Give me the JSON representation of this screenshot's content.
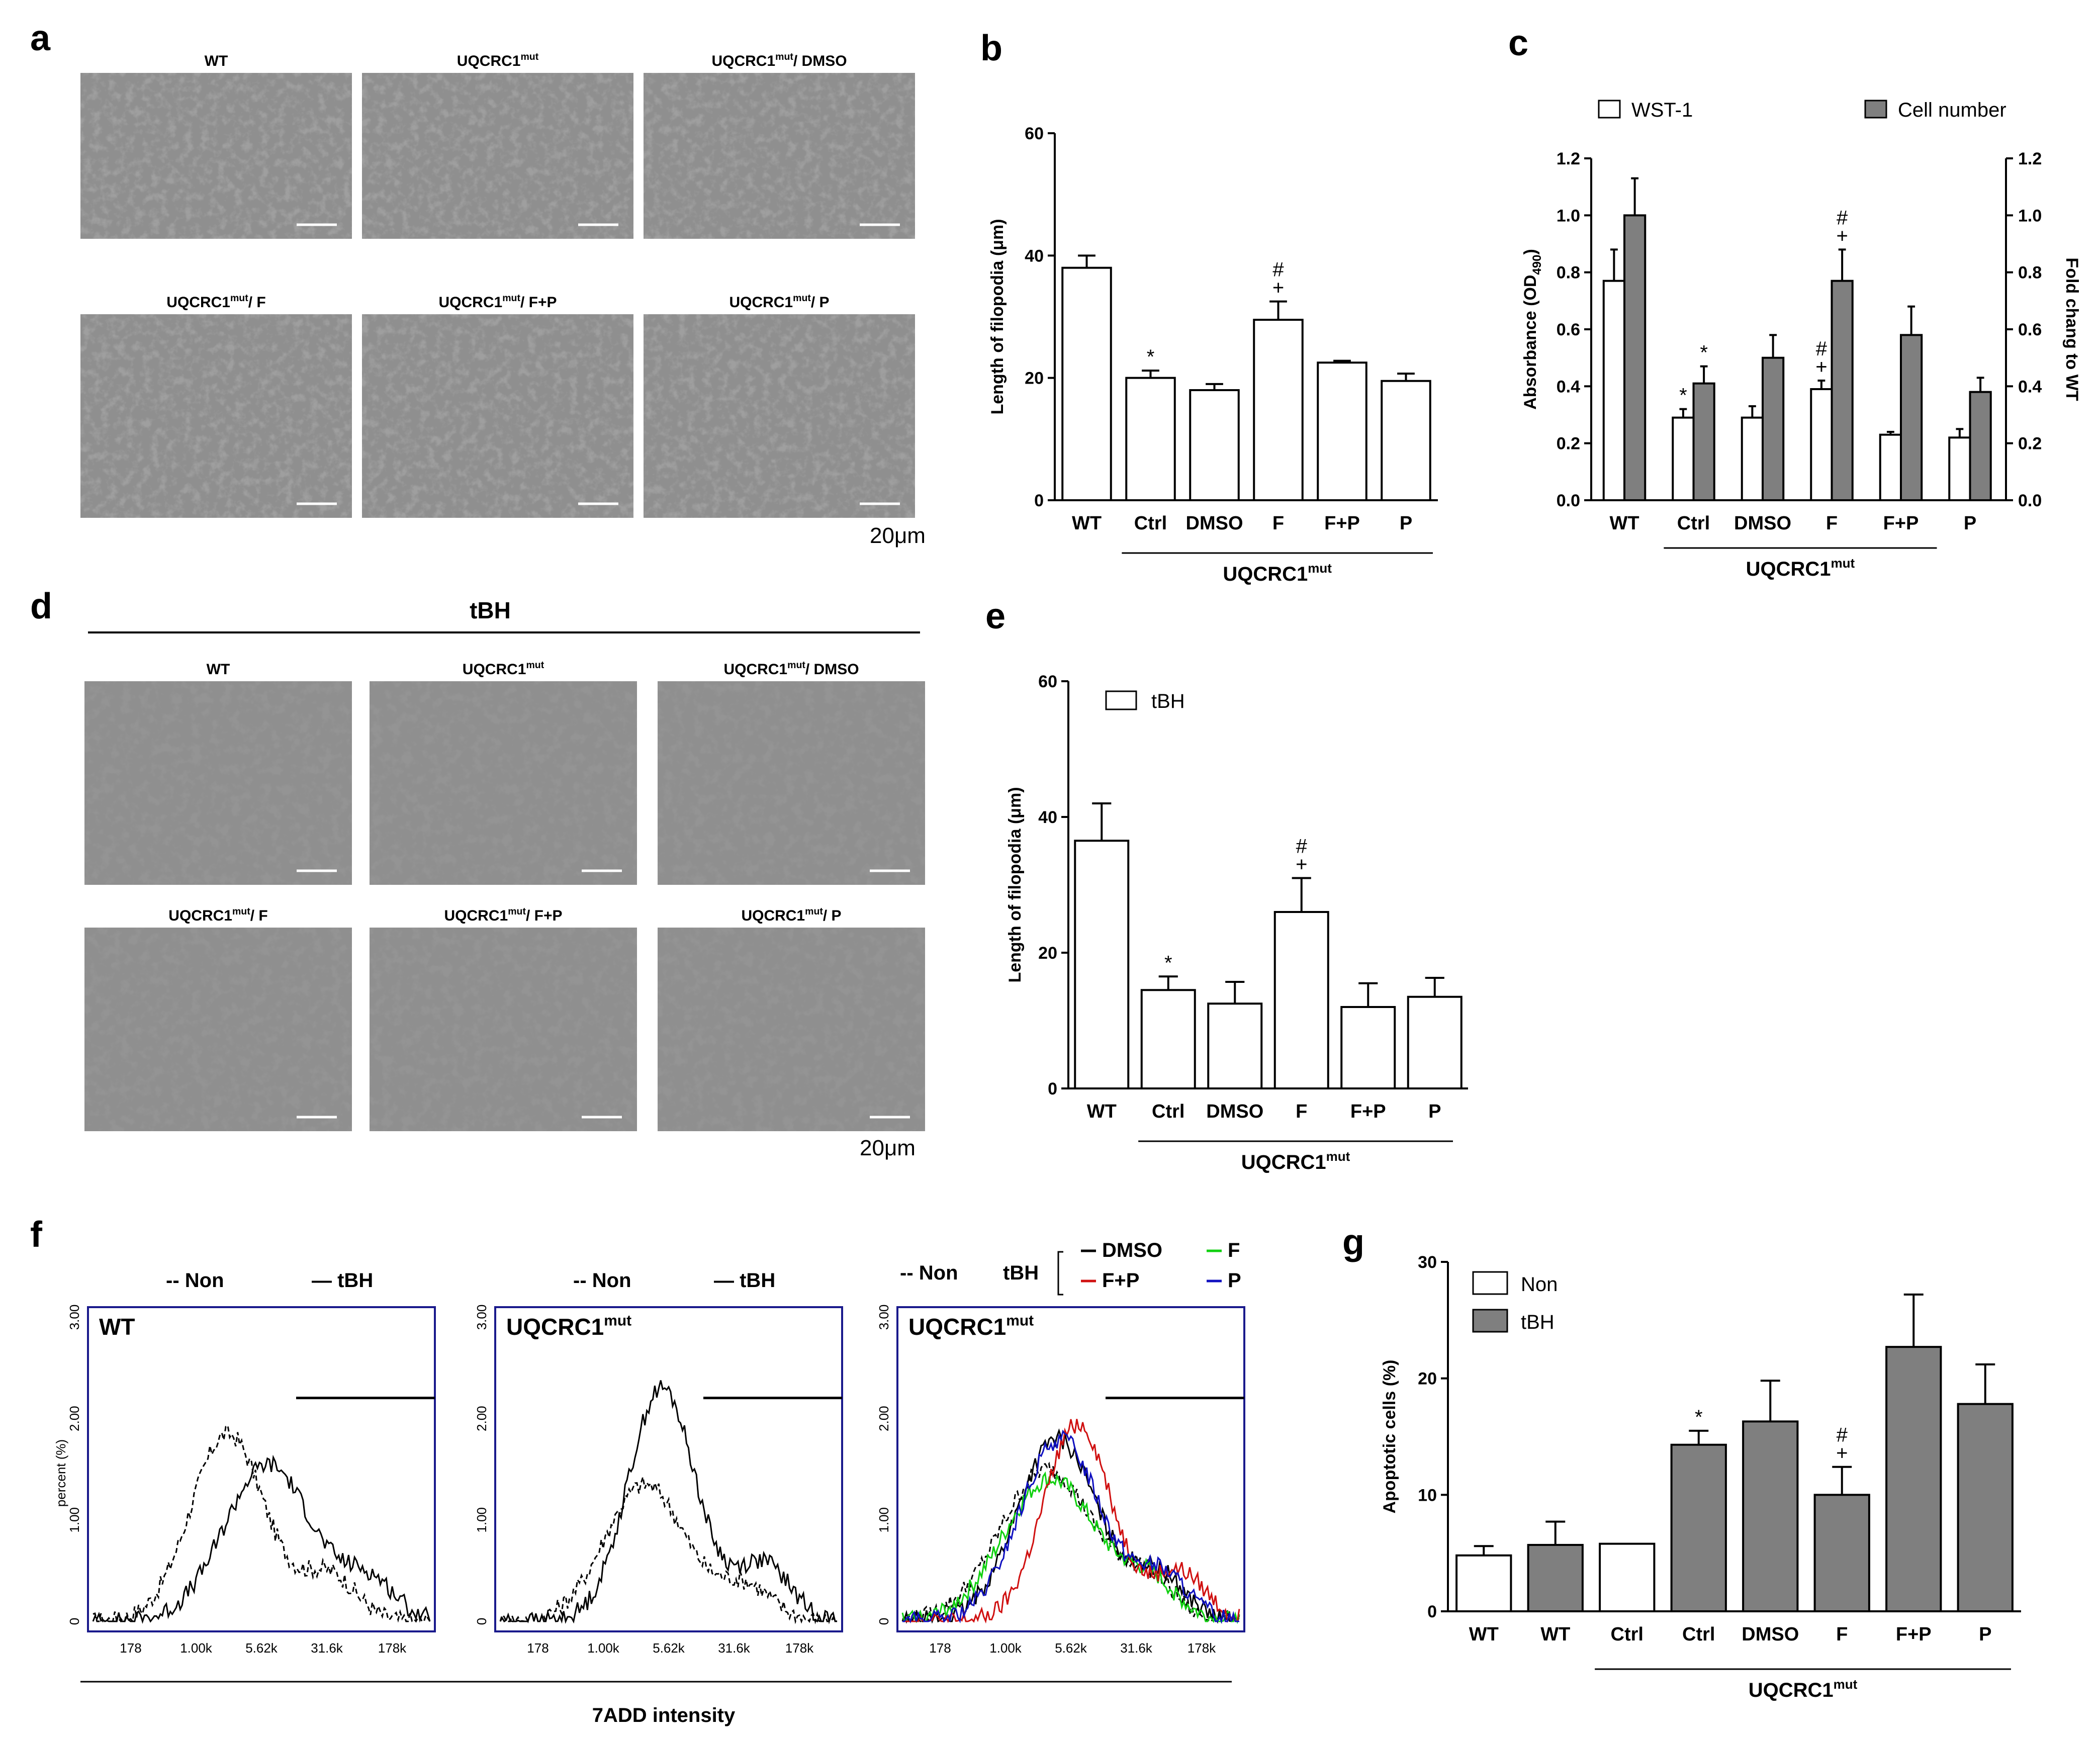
{
  "panel_labels": {
    "a": "a",
    "b": "b",
    "c": "c",
    "d": "d",
    "e": "e",
    "f": "f",
    "g": "g"
  },
  "micrographs_a": [
    {
      "title": "WT",
      "sup": ""
    },
    {
      "title": "UQCRC1",
      "sup": "mut"
    },
    {
      "title": "UQCRC1",
      "sup": "mut",
      "suffix": "/ DMSO"
    },
    {
      "title": "UQCRC1",
      "sup": "mut",
      "suffix": "/ F"
    },
    {
      "title": "UQCRC1",
      "sup": "mut",
      "suffix": "/ F+P"
    },
    {
      "title": "UQCRC1",
      "sup": "mut",
      "suffix": "/ P"
    }
  ],
  "micrographs_d": [
    {
      "title": "WT",
      "sup": ""
    },
    {
      "title": "UQCRC1",
      "sup": "mut"
    },
    {
      "title": "UQCRC1",
      "sup": "mut",
      "suffix": "/ DMSO"
    },
    {
      "title": "UQCRC1",
      "sup": "mut",
      "suffix": "/ F"
    },
    {
      "title": "UQCRC1",
      "sup": "mut",
      "suffix": "/ F+P"
    },
    {
      "title": "UQCRC1",
      "sup": "mut",
      "suffix": "/ P"
    }
  ],
  "scale_bar": "20μm",
  "d_header": "tBH",
  "group_label": {
    "base": "UQCRC1",
    "sup": "mut"
  },
  "colors": {
    "bar_open": "#ffffff",
    "bar_gray": "#7f7f7f",
    "facs_frame": "#1a1a8c",
    "red": "#d01010",
    "green": "#10d010",
    "blue": "#1010c0"
  },
  "chart_data": [
    {
      "id": "b",
      "type": "bar",
      "categories": [
        "WT",
        "Ctrl",
        "DMSO",
        "F",
        "F+P",
        "P"
      ],
      "values": [
        38,
        20,
        18,
        29.5,
        22.5,
        19.5
      ],
      "errors": [
        2,
        1.2,
        1,
        3,
        0.3,
        1.2
      ],
      "annotations": [
        "",
        "*",
        "",
        "#\n+",
        "",
        ""
      ],
      "ylabel": "Length of filopodia (μm)",
      "ylim": [
        0,
        60
      ],
      "yticks": [
        "0",
        "20",
        "40",
        "60"
      ]
    },
    {
      "id": "c",
      "type": "bar",
      "categories": [
        "WT",
        "Ctrl",
        "DMSO",
        "F",
        "F+P",
        "P"
      ],
      "series": [
        {
          "name": "WST-1",
          "values": [
            0.77,
            0.29,
            0.29,
            0.39,
            0.23,
            0.22
          ],
          "errors": [
            0.11,
            0.03,
            0.04,
            0.03,
            0.01,
            0.03
          ],
          "annotations": [
            "",
            "*",
            "",
            "#\n+",
            "",
            ""
          ]
        },
        {
          "name": "Cell number",
          "values": [
            1.0,
            0.41,
            0.5,
            0.77,
            0.58,
            0.38
          ],
          "errors": [
            0.13,
            0.06,
            0.08,
            0.11,
            0.1,
            0.05
          ],
          "annotations": [
            "",
            "*",
            "",
            "#\n+",
            "",
            ""
          ]
        }
      ],
      "ylabel": "Absorbance (OD",
      "ylabel_sub": "490",
      "ylabel_end": ")",
      "y2label": "Fold chang to WT",
      "ylim": [
        0,
        1.2
      ],
      "yticks": [
        "0.0",
        "0.2",
        "0.4",
        "0.6",
        "0.8",
        "1.0",
        "1.2"
      ]
    },
    {
      "id": "e",
      "type": "bar",
      "categories": [
        "WT",
        "Ctrl",
        "DMSO",
        "F",
        "F+P",
        "P"
      ],
      "values": [
        36.5,
        14.5,
        12.5,
        26,
        12,
        13.5
      ],
      "errors": [
        5.5,
        2,
        3.2,
        5,
        3.5,
        2.8
      ],
      "annotations": [
        "",
        "*",
        "",
        "#\n+",
        "",
        ""
      ],
      "legend": "tBH",
      "ylabel": "Length of filopodia (μm)",
      "ylim": [
        0,
        60
      ],
      "yticks": [
        "0",
        "20",
        "40",
        "60"
      ]
    },
    {
      "id": "g",
      "type": "bar",
      "categories": [
        "WT",
        "WT",
        "Ctrl",
        "Ctrl",
        "DMSO",
        "F",
        "F+P",
        "P"
      ],
      "values": [
        4.8,
        5.7,
        5.8,
        14.3,
        16.3,
        10,
        22.7,
        17.8
      ],
      "errors": [
        0.8,
        2,
        0,
        1.2,
        3.5,
        2.4,
        4.5,
        3.4
      ],
      "fill": [
        "open",
        "gray",
        "open",
        "gray",
        "gray",
        "gray",
        "gray",
        "gray"
      ],
      "annotations": [
        "",
        "",
        "",
        "*",
        "",
        "#\n+",
        "",
        ""
      ],
      "legend": [
        "Non",
        "tBH"
      ],
      "ylabel": "Apoptotic cells (%)",
      "ylim": [
        0,
        30
      ],
      "yticks": [
        "0",
        "10",
        "20",
        "30"
      ]
    },
    {
      "id": "f",
      "type": "line",
      "xlabel": "7ADD  intensity",
      "ylabel": "percent (%)",
      "xticks": [
        "178",
        "1.00k",
        "5.62k",
        "31.6k",
        "178k"
      ],
      "yticks": [
        "0",
        "1.00",
        "2.00",
        "3.00"
      ],
      "plots": [
        {
          "label": "WT",
          "legend": [
            "-- Non",
            "— tBH"
          ],
          "series": [
            {
              "name": "Non",
              "style": "dashed",
              "peak_x": 0.4,
              "peak_y": 1.85,
              "width": 0.11
            },
            {
              "name": "tBH",
              "style": "solid",
              "peak_x": 0.52,
              "peak_y": 1.55,
              "width": 0.13
            }
          ]
        },
        {
          "label": "UQCRC1",
          "sup": "mut",
          "legend": [
            "-- Non",
            "— tBH"
          ],
          "series": [
            {
              "name": "Non",
              "style": "dashed",
              "peak_x": 0.43,
              "peak_y": 1.35,
              "width": 0.12
            },
            {
              "name": "tBH",
              "style": "solid",
              "peak_x": 0.48,
              "peak_y": 2.3,
              "width": 0.1
            }
          ]
        },
        {
          "label": "UQCRC1",
          "sup": "mut",
          "legend": [
            "-- Non",
            "tBH",
            "— DMSO",
            "— F",
            "— F+P",
            "— P"
          ],
          "series": [
            {
              "name": "Non",
              "style": "dashed",
              "color": "#000",
              "peak_x": 0.43,
              "peak_y": 1.5,
              "width": 0.14
            },
            {
              "name": "DMSO",
              "style": "solid",
              "color": "#000",
              "peak_x": 0.46,
              "peak_y": 1.8,
              "width": 0.12
            },
            {
              "name": "F",
              "style": "solid",
              "color": "#10d010",
              "peak_x": 0.44,
              "peak_y": 1.4,
              "width": 0.14
            },
            {
              "name": "F+P",
              "style": "solid",
              "color": "#d01010",
              "peak_x": 0.52,
              "peak_y": 1.95,
              "width": 0.1
            },
            {
              "name": "P",
              "style": "solid",
              "color": "#1010c0",
              "peak_x": 0.47,
              "peak_y": 1.8,
              "width": 0.12
            }
          ]
        }
      ]
    }
  ]
}
